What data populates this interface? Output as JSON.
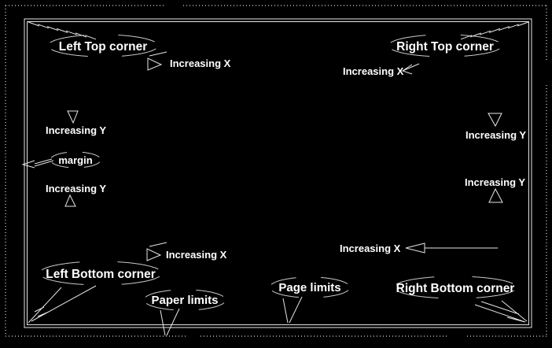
{
  "labels": {
    "left_top_corner": "Left Top corner",
    "right_top_corner": "Right Top corner",
    "left_bottom_corner": "Left Bottom corner",
    "right_bottom_corner": "Right Bottom corner",
    "paper_limits": "Paper limits",
    "page_limits": "Page limits",
    "margin": "margin",
    "increasing_x": "Increasing X",
    "increasing_y": "Increasing Y"
  },
  "colors": {
    "background": "#000000",
    "line": "#e6e6e6",
    "ornament": "#c9c9c9",
    "text": "#ffffff"
  }
}
